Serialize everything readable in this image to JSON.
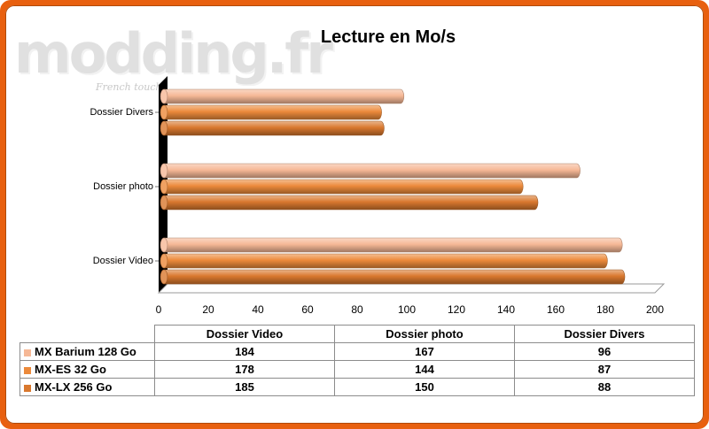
{
  "watermark": {
    "logo": "modding.fr",
    "tagline": "French touch"
  },
  "chart_data": {
    "type": "bar",
    "orientation": "horizontal",
    "title": "Lecture en Mo/s",
    "categories": [
      "Dossier Video",
      "Dossier photo",
      "Dossier Divers"
    ],
    "series": [
      {
        "name": "MX Barium 128 Go",
        "values": [
          184,
          167,
          96
        ],
        "color": "#f6b896"
      },
      {
        "name": "MX-ES 32 Go",
        "values": [
          178,
          144,
          87
        ],
        "color": "#ec8a3b"
      },
      {
        "name": "MX-LX 256 Go",
        "values": [
          185,
          150,
          88
        ],
        "color": "#d9782e"
      }
    ],
    "xlim": [
      0,
      200
    ],
    "xticks": [
      0,
      20,
      40,
      60,
      80,
      100,
      120,
      140,
      160,
      180,
      200
    ],
    "grid": false,
    "legend": "data-table-below"
  }
}
